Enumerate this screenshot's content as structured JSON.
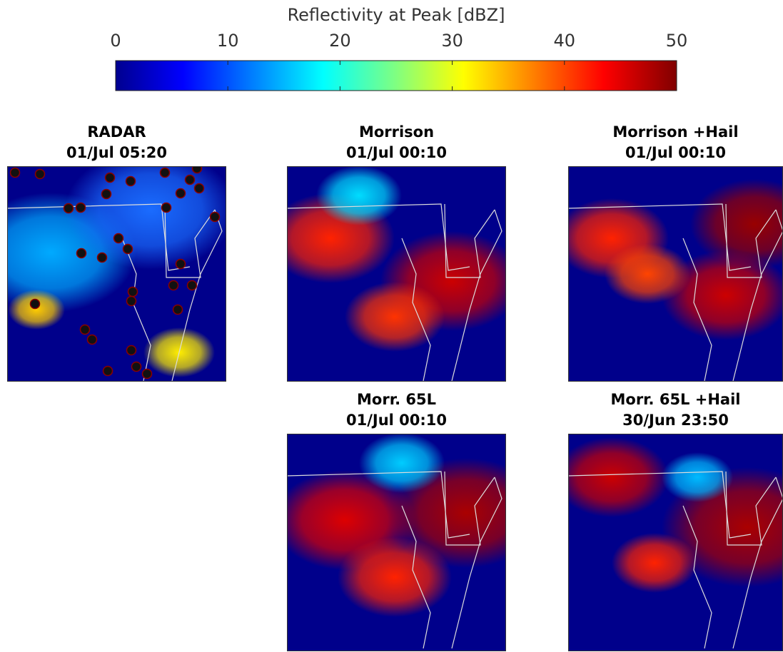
{
  "colorbar": {
    "label": "Reflectivity at Peak [dBZ]",
    "lim": [
      0,
      50
    ],
    "ticks": [
      0,
      10,
      20,
      30,
      40,
      50
    ]
  },
  "panels": [
    {
      "title": "RADAR",
      "time": "01/Jul 05:20"
    },
    {
      "title": "Morrison",
      "time": "01/Jul 00:10"
    },
    {
      "title": "Morrison +Hail",
      "time": "01/Jul 00:10"
    },
    {
      "title": "Morr. 65L",
      "time": "01/Jul 00:10"
    },
    {
      "title": "Morr. 65L +Hail",
      "time": "30/Jun 23:50"
    }
  ]
}
